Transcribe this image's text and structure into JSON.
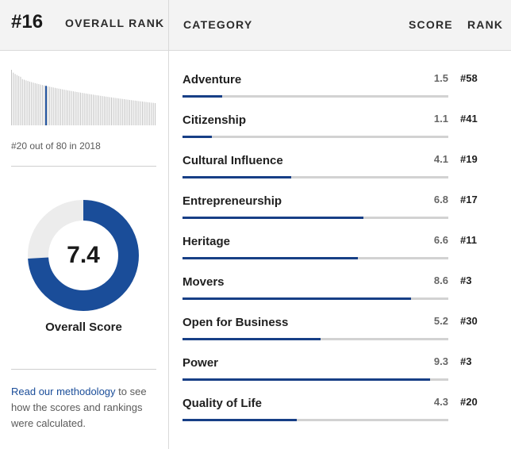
{
  "header": {
    "rank": "#16",
    "rank_label": "OVERALL RANK",
    "category_label": "CATEGORY",
    "score_label": "SCORE",
    "rank_col_label": "RANK"
  },
  "history": {
    "caption": "#20 out of 80 in 2018",
    "highlight_rank": 20,
    "total": 80
  },
  "overall": {
    "score": "7.4",
    "score_value": 7.4,
    "max": 10,
    "label": "Overall Score"
  },
  "methodology": {
    "link_text": "Read our methodology",
    "rest_text": " to see how the scores and rankings were calculated."
  },
  "categories": [
    {
      "name": "Adventure",
      "score": "1.5",
      "rank": "#58",
      "value": 1.5
    },
    {
      "name": "Citizenship",
      "score": "1.1",
      "rank": "#41",
      "value": 1.1
    },
    {
      "name": "Cultural Influence",
      "score": "4.1",
      "rank": "#19",
      "value": 4.1
    },
    {
      "name": "Entrepreneurship",
      "score": "6.8",
      "rank": "#17",
      "value": 6.8
    },
    {
      "name": "Heritage",
      "score": "6.6",
      "rank": "#11",
      "value": 6.6
    },
    {
      "name": "Movers",
      "score": "8.6",
      "rank": "#3",
      "value": 8.6
    },
    {
      "name": "Open for Business",
      "score": "5.2",
      "rank": "#30",
      "value": 5.2
    },
    {
      "name": "Power",
      "score": "9.3",
      "rank": "#3",
      "value": 9.3
    },
    {
      "name": "Quality of Life",
      "score": "4.3",
      "rank": "#20",
      "value": 4.3
    }
  ],
  "colors": {
    "accent": "#173f86",
    "donut_fill": "#1a4d99",
    "donut_track": "#ececec",
    "bar_track": "#d2d2d2",
    "spark_line": "#c4c4c4"
  }
}
